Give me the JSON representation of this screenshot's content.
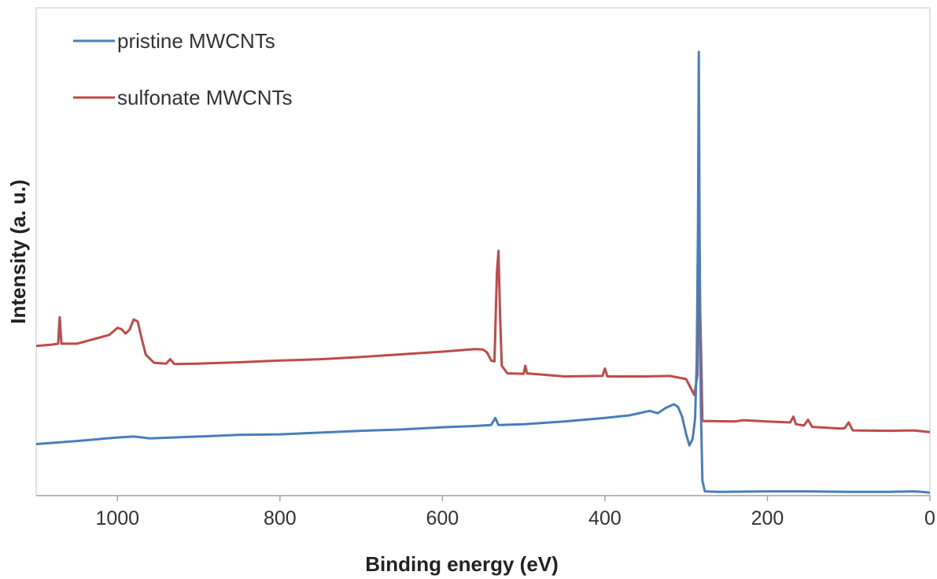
{
  "chart_data": {
    "type": "line",
    "title": "",
    "xlabel": "Binding energy (eV)",
    "ylabel": "Intensity (a. u.)",
    "xlim": [
      1100,
      0
    ],
    "x_reversed": true,
    "ylim": [
      0,
      100
    ],
    "y_ticks_shown": false,
    "x_ticks": [
      1000,
      800,
      600,
      400,
      200,
      0
    ],
    "x_tick_labels": [
      "1000",
      "800",
      "600",
      "400",
      "200",
      "0"
    ],
    "grid": false,
    "legend_position": "top-left",
    "series": [
      {
        "name": "pristine MWCNTs",
        "color": "#4a7ebb",
        "points": [
          [
            1100,
            11.3
          ],
          [
            1050,
            12.0
          ],
          [
            1000,
            12.8
          ],
          [
            980,
            13.0
          ],
          [
            960,
            12.6
          ],
          [
            900,
            13.0
          ],
          [
            850,
            13.4
          ],
          [
            800,
            13.5
          ],
          [
            750,
            13.9
          ],
          [
            700,
            14.3
          ],
          [
            650,
            14.6
          ],
          [
            600,
            15.1
          ],
          [
            560,
            15.4
          ],
          [
            540,
            15.6
          ],
          [
            535,
            17.2
          ],
          [
            531,
            15.6
          ],
          [
            500,
            15.8
          ],
          [
            450,
            16.4
          ],
          [
            400,
            17.2
          ],
          [
            370,
            17.8
          ],
          [
            345,
            18.8
          ],
          [
            335,
            18.3
          ],
          [
            325,
            19.5
          ],
          [
            315,
            20.3
          ],
          [
            310,
            19.7
          ],
          [
            305,
            17.5
          ],
          [
            300,
            13.5
          ],
          [
            296,
            11.0
          ],
          [
            292,
            12.5
          ],
          [
            289,
            17.0
          ],
          [
            287,
            30.0
          ],
          [
            285.5,
            60.0
          ],
          [
            284.5,
            100.0
          ],
          [
            283.5,
            60.0
          ],
          [
            282,
            20.0
          ],
          [
            280,
            3.0
          ],
          [
            277,
            0.6
          ],
          [
            260,
            0.5
          ],
          [
            200,
            0.6
          ],
          [
            150,
            0.6
          ],
          [
            100,
            0.5
          ],
          [
            50,
            0.5
          ],
          [
            20,
            0.6
          ],
          [
            10,
            0.5
          ],
          [
            0,
            0.3
          ]
        ]
      },
      {
        "name": "sulfonate MWCNTs",
        "color": "#be4b48",
        "points": [
          [
            1100,
            33.5
          ],
          [
            1080,
            33.8
          ],
          [
            1073,
            34.0
          ],
          [
            1071,
            40.0
          ],
          [
            1069,
            34.0
          ],
          [
            1050,
            34.0
          ],
          [
            1030,
            35.0
          ],
          [
            1010,
            36.0
          ],
          [
            1000,
            37.6
          ],
          [
            995,
            37.3
          ],
          [
            990,
            36.3
          ],
          [
            985,
            37.2
          ],
          [
            980,
            39.5
          ],
          [
            975,
            39.0
          ],
          [
            970,
            35.0
          ],
          [
            965,
            31.5
          ],
          [
            955,
            29.7
          ],
          [
            940,
            29.5
          ],
          [
            935,
            30.5
          ],
          [
            930,
            29.4
          ],
          [
            900,
            29.5
          ],
          [
            850,
            29.8
          ],
          [
            800,
            30.2
          ],
          [
            750,
            30.5
          ],
          [
            700,
            31.0
          ],
          [
            650,
            31.6
          ],
          [
            600,
            32.2
          ],
          [
            560,
            32.8
          ],
          [
            550,
            32.7
          ],
          [
            545,
            32.0
          ],
          [
            540,
            30.2
          ],
          [
            536,
            30.0
          ],
          [
            533,
            50.0
          ],
          [
            531,
            55.0
          ],
          [
            529,
            40.0
          ],
          [
            527,
            29.0
          ],
          [
            520,
            27.3
          ],
          [
            500,
            27.2
          ],
          [
            498,
            29.0
          ],
          [
            496,
            27.3
          ],
          [
            450,
            26.6
          ],
          [
            403,
            26.7
          ],
          [
            400,
            28.4
          ],
          [
            397,
            26.6
          ],
          [
            350,
            26.6
          ],
          [
            320,
            26.7
          ],
          [
            300,
            26.0
          ],
          [
            290,
            22.4
          ],
          [
            286,
            27.0
          ],
          [
            284,
            52.0
          ],
          [
            282,
            35.0
          ],
          [
            280,
            16.5
          ],
          [
            270,
            16.5
          ],
          [
            240,
            16.4
          ],
          [
            230,
            16.7
          ],
          [
            200,
            16.4
          ],
          [
            172,
            16.2
          ],
          [
            168,
            17.5
          ],
          [
            165,
            15.8
          ],
          [
            155,
            15.5
          ],
          [
            150,
            16.8
          ],
          [
            145,
            15.2
          ],
          [
            110,
            14.8
          ],
          [
            105,
            14.9
          ],
          [
            100,
            16.2
          ],
          [
            95,
            14.4
          ],
          [
            50,
            14.3
          ],
          [
            20,
            14.4
          ],
          [
            0,
            14.0
          ]
        ]
      }
    ]
  }
}
